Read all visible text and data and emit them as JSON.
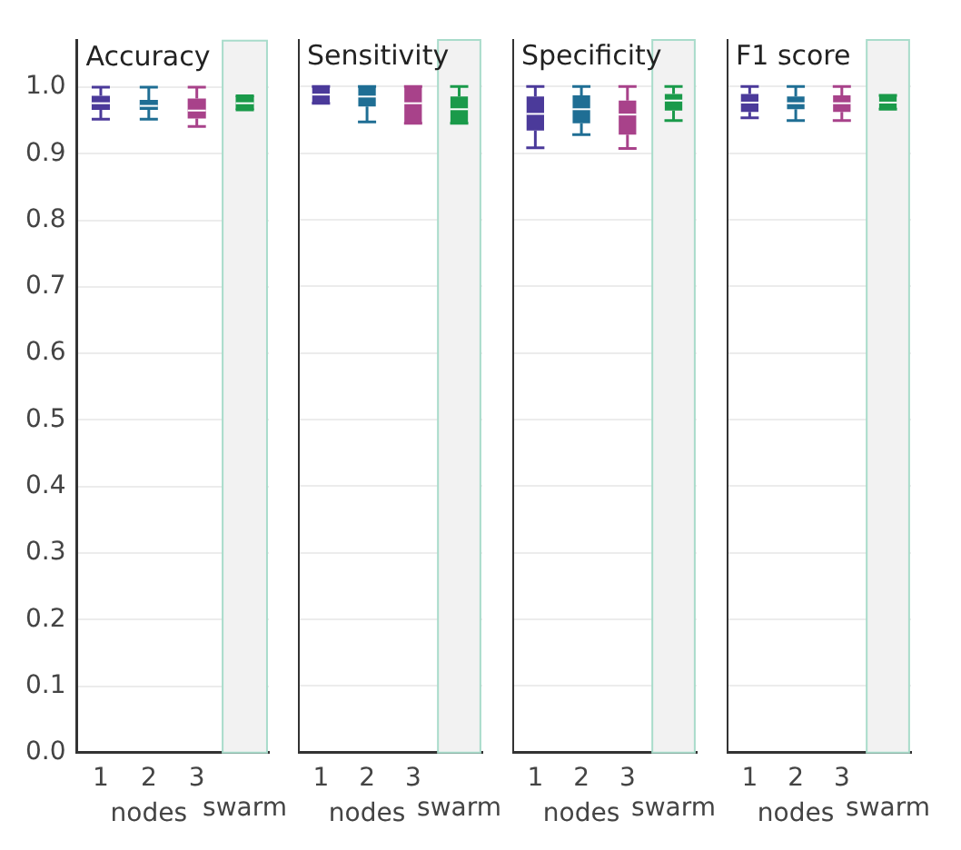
{
  "chart_data": [
    {
      "type": "box",
      "title": "Accuracy",
      "categories": [
        "1",
        "2",
        "3",
        "swarm"
      ],
      "xlabel": "nodes",
      "colors": [
        "#4b3a9a",
        "#1f6e94",
        "#a8428a",
        "#1a9a4a"
      ],
      "boxes": [
        {
          "low": 0.952,
          "q1": 0.966,
          "median": 0.976,
          "q3": 0.987,
          "high": 1.0
        },
        {
          "low": 0.952,
          "q1": 0.966,
          "median": 0.972,
          "q3": 0.981,
          "high": 1.0
        },
        {
          "low": 0.941,
          "q1": 0.953,
          "median": 0.965,
          "q3": 0.983,
          "high": 1.0
        },
        {
          "low": 0.966,
          "q1": 0.966,
          "median": 0.976,
          "q3": 0.987,
          "high": 0.987
        }
      ],
      "bands": [
        {
          "axis": "x",
          "from": "swarm",
          "to": "swarm",
          "color": "#f2f2f2"
        }
      ],
      "ylim": [
        0,
        1.07
      ],
      "yticks": [
        {
          "value": 0,
          "label": "0.0"
        },
        0.1,
        0.2,
        0.3,
        0.4,
        0.5,
        0.6,
        0.7,
        0.8,
        0.9,
        {
          "value": 1,
          "label": "1.0"
        }
      ],
      "grid": "y"
    },
    {
      "type": "box",
      "title": "Sensitivity",
      "categories": [
        "1",
        "2",
        "3",
        "swarm"
      ],
      "xlabel": "nodes",
      "colors": [
        "#4b3a9a",
        "#1f6e94",
        "#a8428a",
        "#1a9a4a"
      ],
      "boxes": [
        {
          "low": 0.975,
          "q1": 0.975,
          "median": 0.988,
          "q3": 1.0,
          "high": 1.0
        },
        {
          "low": 0.947,
          "q1": 0.97,
          "median": 0.985,
          "q3": 1.0,
          "high": 1.0
        },
        {
          "low": 0.945,
          "q1": 0.945,
          "median": 0.975,
          "q3": 1.0,
          "high": 1.0
        },
        {
          "low": 0.945,
          "q1": 0.945,
          "median": 0.966,
          "q3": 0.985,
          "high": 1.0
        }
      ],
      "bands": [
        {
          "axis": "x",
          "from": "swarm",
          "to": "swarm",
          "color": "#f2f2f2"
        }
      ],
      "ylim": [
        0,
        1.07
      ],
      "yticks": [
        0,
        0.1,
        0.2,
        0.3,
        0.4,
        0.5,
        0.6,
        0.7,
        0.8,
        0.9,
        1
      ],
      "grid": "y",
      "tick_labels": "x"
    },
    {
      "type": "box",
      "title": "Specificity",
      "categories": [
        "1",
        "2",
        "3",
        "swarm"
      ],
      "xlabel": "nodes",
      "colors": [
        "#4b3a9a",
        "#1f6e94",
        "#a8428a",
        "#1a9a4a"
      ],
      "boxes": [
        {
          "low": 0.908,
          "q1": 0.934,
          "median": 0.959,
          "q3": 0.985,
          "high": 1.0
        },
        {
          "low": 0.928,
          "q1": 0.945,
          "median": 0.966,
          "q3": 0.987,
          "high": 1.0
        },
        {
          "low": 0.907,
          "q1": 0.928,
          "median": 0.958,
          "q3": 0.979,
          "high": 1.0
        },
        {
          "low": 0.949,
          "q1": 0.964,
          "median": 0.979,
          "q3": 0.989,
          "high": 1.0
        }
      ],
      "bands": [
        {
          "axis": "x",
          "from": "swarm",
          "to": "swarm",
          "color": "#f2f2f2"
        }
      ],
      "ylim": [
        0,
        1.07
      ],
      "yticks": [
        0,
        0.1,
        0.2,
        0.3,
        0.4,
        0.5,
        0.6,
        0.7,
        0.8,
        0.9,
        1
      ],
      "grid": "y",
      "tick_labels": "x"
    },
    {
      "type": "box",
      "title": "F1 score",
      "categories": [
        "1",
        "2",
        "3",
        "swarm"
      ],
      "xlabel": "nodes",
      "colors": [
        "#4b3a9a",
        "#1f6e94",
        "#a8428a",
        "#1a9a4a"
      ],
      "boxes": [
        {
          "low": 0.953,
          "q1": 0.962,
          "median": 0.976,
          "q3": 0.989,
          "high": 1.0
        },
        {
          "low": 0.949,
          "q1": 0.966,
          "median": 0.975,
          "q3": 0.985,
          "high": 1.0
        },
        {
          "low": 0.949,
          "q1": 0.962,
          "median": 0.975,
          "q3": 0.987,
          "high": 1.0
        },
        {
          "low": 0.966,
          "q1": 0.966,
          "median": 0.976,
          "q3": 0.987,
          "high": 0.987
        }
      ],
      "bands": [
        {
          "axis": "x",
          "from": "swarm",
          "to": "swarm",
          "color": "#f2f2f2"
        }
      ],
      "ylim": [
        0,
        1.07
      ],
      "yticks": [
        0,
        0.1,
        0.2,
        0.3,
        0.4,
        0.5,
        0.6,
        0.7,
        0.8,
        0.9,
        1
      ],
      "grid": "y",
      "tick_labels": "x"
    }
  ]
}
